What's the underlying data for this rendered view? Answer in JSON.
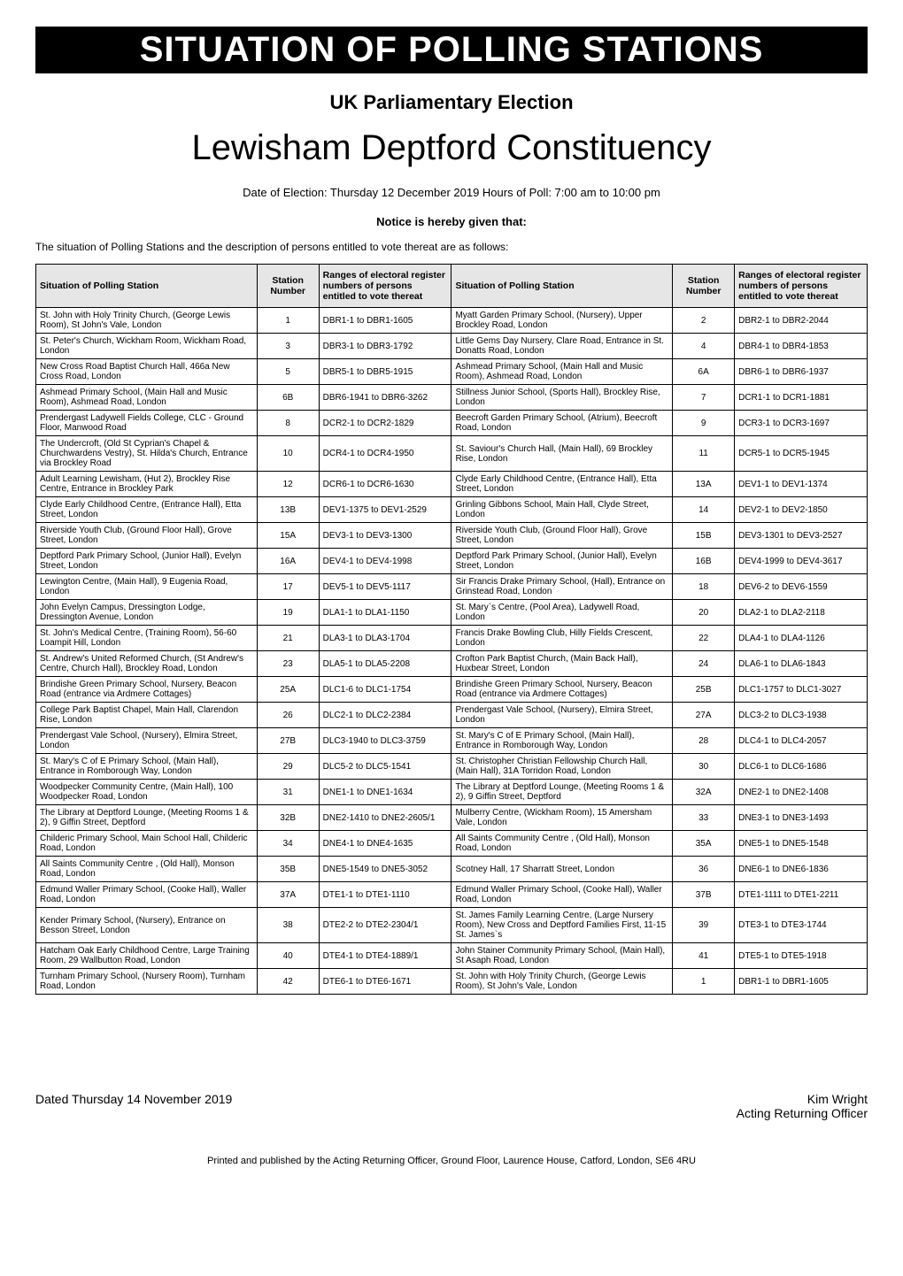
{
  "banner": "SITUATION OF POLLING STATIONS",
  "subtitle": "UK Parliamentary Election",
  "constituency": "Lewisham Deptford Constituency",
  "details": "Date of Election: Thursday 12 December 2019 Hours of Poll: 7:00 am to 10:00 pm",
  "notice": "Notice is hereby given that:",
  "intro": "The situation of Polling Stations and the description of persons entitled to vote thereat are as follows:",
  "headers": {
    "situation": "Situation of Polling Station",
    "number": "Station Number",
    "ranges": "Ranges of electoral register numbers of persons entitled to vote thereat"
  },
  "rows": [
    {
      "s1": "St. John with Holy Trinity Church, (George Lewis Room), St John's Vale, London",
      "n1": "1",
      "r1": "DBR1-1 to DBR1-1605",
      "s2": "Myatt Garden Primary School, (Nursery), Upper Brockley Road, London",
      "n2": "2",
      "r2": "DBR2-1 to DBR2-2044"
    },
    {
      "s1": "St. Peter's Church, Wickham Room, Wickham Road, London",
      "n1": "3",
      "r1": "DBR3-1 to DBR3-1792",
      "s2": "Little Gems Day Nursery, Clare Road, Entrance in St. Donatts Road, London",
      "n2": "4",
      "r2": "DBR4-1 to DBR4-1853"
    },
    {
      "s1": "New Cross Road Baptist Church Hall, 466a New Cross Road, London",
      "n1": "5",
      "r1": "DBR5-1 to DBR5-1915",
      "s2": "Ashmead Primary School, (Main Hall and Music Room), Ashmead Road, London",
      "n2": "6A",
      "r2": "DBR6-1 to DBR6-1937"
    },
    {
      "s1": "Ashmead Primary School, (Main Hall and Music Room), Ashmead Road, London",
      "n1": "6B",
      "r1": "DBR6-1941 to DBR6-3262",
      "s2": "Stillness Junior School, (Sports Hall), Brockley Rise, London",
      "n2": "7",
      "r2": "DCR1-1 to DCR1-1881"
    },
    {
      "s1": "Prendergast Ladywell Fields College, CLC - Ground Floor, Manwood Road",
      "n1": "8",
      "r1": "DCR2-1 to DCR2-1829",
      "s2": "Beecroft Garden Primary School, (Atrium), Beecroft Road, London",
      "n2": "9",
      "r2": "DCR3-1 to DCR3-1697"
    },
    {
      "s1": "The Undercroft, (Old St Cyprian's Chapel & Churchwardens Vestry), St. Hilda's Church, Entrance via Brockley Road",
      "n1": "10",
      "r1": "DCR4-1 to DCR4-1950",
      "s2": "St. Saviour's Church Hall, (Main Hall), 69 Brockley Rise, London",
      "n2": "11",
      "r2": "DCR5-1 to DCR5-1945"
    },
    {
      "s1": "Adult Learning Lewisham, (Hut 2), Brockley Rise Centre, Entrance in Brockley Park",
      "n1": "12",
      "r1": "DCR6-1 to DCR6-1630",
      "s2": "Clyde Early Childhood Centre, (Entrance Hall), Etta Street, London",
      "n2": "13A",
      "r2": "DEV1-1 to DEV1-1374"
    },
    {
      "s1": "Clyde Early Childhood Centre, (Entrance Hall), Etta Street, London",
      "n1": "13B",
      "r1": "DEV1-1375 to DEV1-2529",
      "s2": "Grinling Gibbons School, Main Hall, Clyde Street, London",
      "n2": "14",
      "r2": "DEV2-1 to DEV2-1850"
    },
    {
      "s1": "Riverside Youth Club, (Ground Floor Hall), Grove Street, London",
      "n1": "15A",
      "r1": "DEV3-1 to DEV3-1300",
      "s2": "Riverside Youth Club, (Ground Floor Hall), Grove Street, London",
      "n2": "15B",
      "r2": "DEV3-1301 to DEV3-2527"
    },
    {
      "s1": "Deptford Park Primary School, (Junior Hall), Evelyn Street, London",
      "n1": "16A",
      "r1": "DEV4-1 to DEV4-1998",
      "s2": "Deptford Park Primary School, (Junior Hall), Evelyn Street, London",
      "n2": "16B",
      "r2": "DEV4-1999 to DEV4-3617"
    },
    {
      "s1": "Lewington Centre, (Main Hall), 9 Eugenia Road, London",
      "n1": "17",
      "r1": "DEV5-1 to DEV5-1117",
      "s2": "Sir Francis Drake Primary School, (Hall), Entrance on Grinstead Road, London",
      "n2": "18",
      "r2": "DEV6-2 to DEV6-1559"
    },
    {
      "s1": "John Evelyn Campus, Dressington Lodge, Dressington Avenue, London",
      "n1": "19",
      "r1": "DLA1-1 to DLA1-1150",
      "s2": "St. Mary`s Centre, (Pool Area), Ladywell Road, London",
      "n2": "20",
      "r2": "DLA2-1 to DLA2-2118"
    },
    {
      "s1": "St. John's Medical Centre, (Training Room), 56-60 Loampit Hill, London",
      "n1": "21",
      "r1": "DLA3-1 to DLA3-1704",
      "s2": "Francis Drake Bowling Club, Hilly Fields Crescent, London",
      "n2": "22",
      "r2": "DLA4-1 to DLA4-1126"
    },
    {
      "s1": "St. Andrew's United Reformed Church, (St Andrew's Centre, Church Hall), Brockley Road, London",
      "n1": "23",
      "r1": "DLA5-1 to DLA5-2208",
      "s2": "Crofton Park Baptist Church, (Main Back Hall), Huxbear Street, London",
      "n2": "24",
      "r2": "DLA6-1 to DLA6-1843"
    },
    {
      "s1": "Brindishe Green Primary School, Nursery, Beacon Road (entrance via Ardmere Cottages)",
      "n1": "25A",
      "r1": "DLC1-6 to DLC1-1754",
      "s2": "Brindishe Green Primary School, Nursery, Beacon Road (entrance via Ardmere Cottages)",
      "n2": "25B",
      "r2": "DLC1-1757 to DLC1-3027"
    },
    {
      "s1": "College Park Baptist Chapel, Main Hall, Clarendon Rise, London",
      "n1": "26",
      "r1": "DLC2-1 to DLC2-2384",
      "s2": "Prendergast Vale School, (Nursery), Elmira Street, London",
      "n2": "27A",
      "r2": "DLC3-2 to DLC3-1938"
    },
    {
      "s1": "Prendergast Vale School, (Nursery), Elmira Street, London",
      "n1": "27B",
      "r1": "DLC3-1940 to DLC3-3759",
      "s2": "St. Mary's C of E Primary School, (Main Hall), Entrance in Romborough Way, London",
      "n2": "28",
      "r2": "DLC4-1 to DLC4-2057"
    },
    {
      "s1": "St. Mary's C of E Primary School, (Main Hall), Entrance in Romborough Way, London",
      "n1": "29",
      "r1": "DLC5-2 to DLC5-1541",
      "s2": "St. Christopher Christian Fellowship Church Hall, (Main Hall), 31A Torridon Road, London",
      "n2": "30",
      "r2": "DLC6-1 to DLC6-1686"
    },
    {
      "s1": "Woodpecker Community Centre, (Main Hall), 100 Woodpecker Road, London",
      "n1": "31",
      "r1": "DNE1-1 to DNE1-1634",
      "s2": "The Library at Deptford Lounge, (Meeting Rooms 1 & 2), 9 Giffin Street, Deptford",
      "n2": "32A",
      "r2": "DNE2-1 to DNE2-1408"
    },
    {
      "s1": "The Library at Deptford Lounge, (Meeting Rooms 1 & 2), 9 Giffin Street, Deptford",
      "n1": "32B",
      "r1": "DNE2-1410 to DNE2-2605/1",
      "s2": "Mulberry Centre, (Wickham Room), 15 Amersham Vale, London",
      "n2": "33",
      "r2": "DNE3-1 to DNE3-1493"
    },
    {
      "s1": "Childeric Primary School, Main School Hall, Childeric Road, London",
      "n1": "34",
      "r1": "DNE4-1 to DNE4-1635",
      "s2": "All Saints Community Centre , (Old Hall), Monson Road, London",
      "n2": "35A",
      "r2": "DNE5-1 to DNE5-1548"
    },
    {
      "s1": "All Saints Community Centre , (Old Hall), Monson Road, London",
      "n1": "35B",
      "r1": "DNE5-1549 to DNE5-3052",
      "s2": "Scotney Hall, 17 Sharratt Street, London",
      "n2": "36",
      "r2": "DNE6-1 to DNE6-1836"
    },
    {
      "s1": "Edmund Waller Primary School, (Cooke Hall), Waller Road, London",
      "n1": "37A",
      "r1": "DTE1-1 to DTE1-1110",
      "s2": "Edmund Waller Primary School, (Cooke Hall), Waller Road, London",
      "n2": "37B",
      "r2": "DTE1-1111 to DTE1-2211"
    },
    {
      "s1": "Kender Primary School, (Nursery), Entrance on Besson Street, London",
      "n1": "38",
      "r1": "DTE2-2 to DTE2-2304/1",
      "s2": "St. James Family Learning Centre, (Large Nursery Room), New Cross and Deptford Families First, 11-15 St. James`s",
      "n2": "39",
      "r2": "DTE3-1 to DTE3-1744"
    },
    {
      "s1": "Hatcham Oak Early Childhood Centre, Large Training Room, 29 Wallbutton Road, London",
      "n1": "40",
      "r1": "DTE4-1 to DTE4-1889/1",
      "s2": "John Stainer Community Primary School, (Main Hall), St Asaph Road, London",
      "n2": "41",
      "r2": "DTE5-1 to DTE5-1918"
    },
    {
      "s1": "Turnham Primary School, (Nursery Room), Turnham Road, London",
      "n1": "42",
      "r1": "DTE6-1 to DTE6-1671",
      "s2": "St. John with Holy Trinity Church, (George Lewis Room), St John's Vale, London",
      "n2": "1",
      "r2": "DBR1-1 to DBR1-1605"
    }
  ],
  "footer": {
    "dated": "Dated Thursday 14 November 2019",
    "name": "Kim Wright",
    "role": "Acting Returning Officer"
  },
  "printline": "Printed and published by the Acting Returning Officer, Ground Floor, Laurence House, Catford, London, SE6 4RU"
}
